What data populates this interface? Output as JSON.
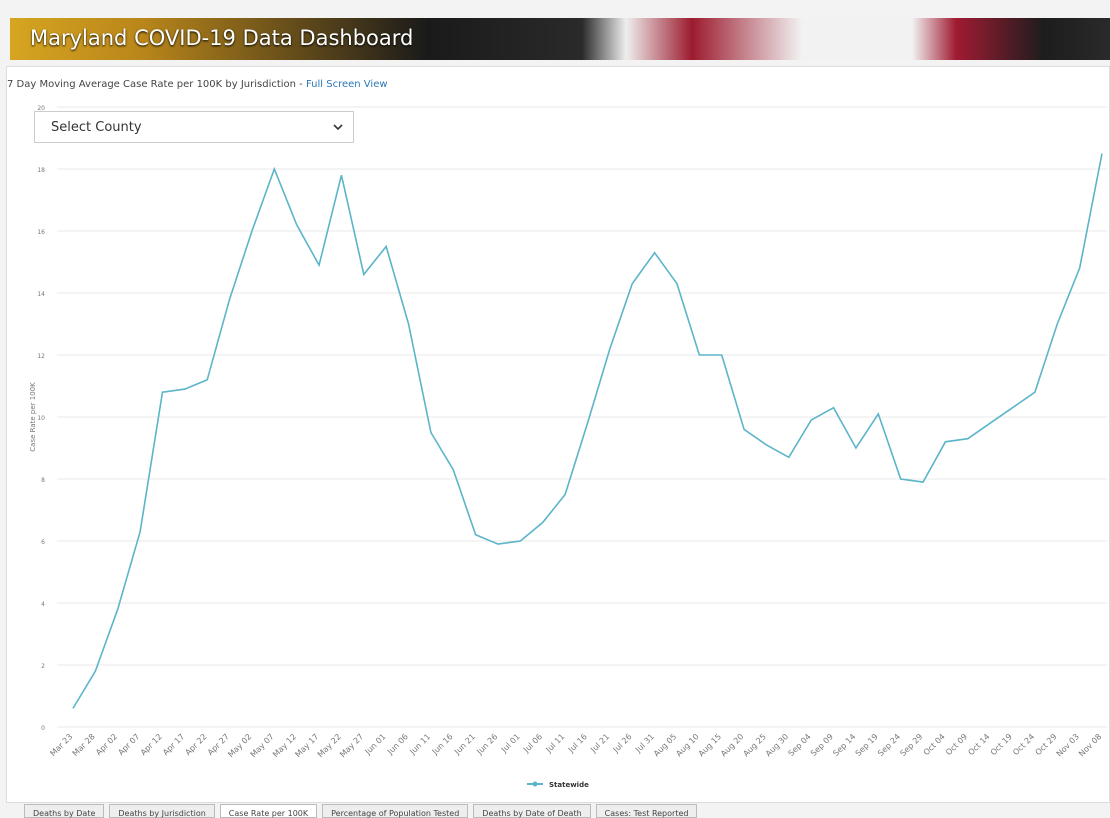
{
  "header": {
    "title": "Maryland COVID-19 Data Dashboard"
  },
  "subtitle": "7 Day Moving Average Case Rate per 100K by Jurisdiction - ",
  "link": "Full Screen View",
  "select": {
    "label": "Select County"
  },
  "chart_data": {
    "type": "line",
    "y_label": "Case Rate per 100K",
    "categories": [
      "Mar 23",
      "Mar 28",
      "Apr 02",
      "Apr 07",
      "Apr 12",
      "Apr 17",
      "Apr 22",
      "Apr 27",
      "May 02",
      "May 07",
      "May 12",
      "May 17",
      "May 22",
      "May 27",
      "Jun 01",
      "Jun 06",
      "Jun 11",
      "Jun 16",
      "Jun 21",
      "Jun 26",
      "Jul 01",
      "Jul 06",
      "Jul 11",
      "Jul 16",
      "Jul 21",
      "Jul 26",
      "Jul 31",
      "Aug 05",
      "Aug 10",
      "Aug 15",
      "Aug 20",
      "Aug 25",
      "Aug 30",
      "Sep 04",
      "Sep 09",
      "Sep 14",
      "Sep 19",
      "Sep 24",
      "Sep 29",
      "Oct 04",
      "Oct 09",
      "Oct 14",
      "Oct 19",
      "Oct 24",
      "Oct 29",
      "Nov 03",
      "Nov 08"
    ],
    "series": [
      {
        "name": "Statewide",
        "color": "#5bb5c8",
        "values": [
          0.6,
          1.8,
          3.8,
          6.3,
          10.8,
          10.9,
          11.2,
          13.8,
          16.0,
          18.0,
          16.2,
          14.9,
          17.8,
          14.6,
          15.5,
          13.0,
          9.5,
          8.3,
          6.2,
          5.9,
          6.0,
          6.6,
          7.5,
          9.8,
          12.2,
          14.3,
          15.3,
          14.3,
          12.0,
          12.0,
          9.6,
          9.1,
          8.7,
          9.9,
          10.3,
          9.0,
          10.1,
          8.0,
          7.9,
          9.2,
          9.3,
          9.8,
          10.3,
          10.8,
          13.0,
          14.8,
          18.5
        ]
      }
    ],
    "ylim": [
      0,
      20
    ],
    "yticks": [
      0,
      2,
      4,
      6,
      8,
      10,
      12,
      14,
      16,
      18,
      20
    ],
    "grid": true,
    "legend": "bottom"
  },
  "tabs": [
    "Deaths by Date",
    "Deaths by Jurisdiction",
    "Case Rate per 100K",
    "Percentage of Population Tested",
    "Deaths by Date of Death",
    "Cases: Test Reported"
  ]
}
